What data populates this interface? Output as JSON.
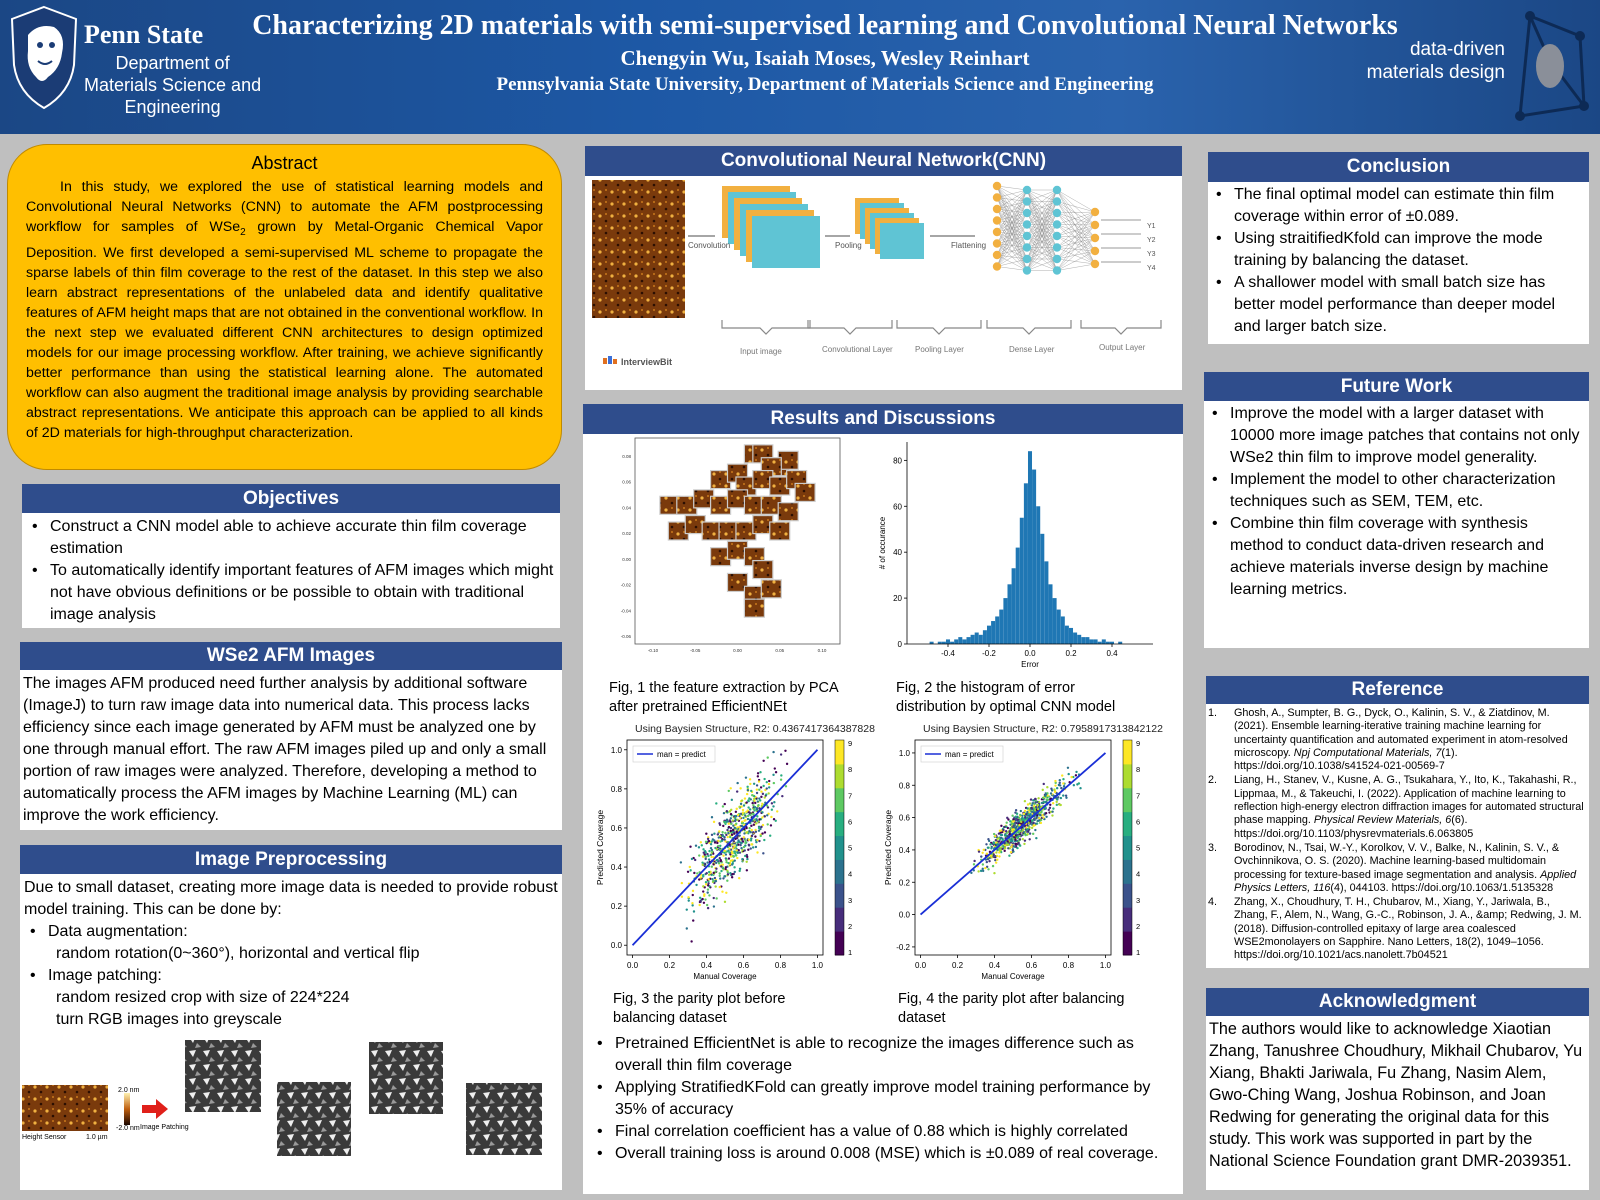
{
  "header": {
    "university": "Penn State",
    "department": [
      "Department of",
      "Materials Science and",
      "Engineering"
    ],
    "title": "Characterizing 2D materials with semi-supervised learning and Convolutional Neural Networks",
    "authors": "Chengyin Wu, Isaiah Moses, Wesley Reinhart",
    "affiliation": "Pennsylvania State University, Department of Materials Science and Engineering",
    "brand": [
      "data-driven",
      "materials design"
    ]
  },
  "abstract": {
    "heading": "Abstract",
    "text_before_sub": "In this study, we explored the use of statistical learning models and Convolutional Neural Networks (CNN) to automate the AFM postprocessing workflow for samples of WSe",
    "subscript": "2",
    "text_after_sub": " grown by Metal-Organic Chemical Vapor Deposition. We first developed a semi-supervised ML scheme to propagate the sparse labels of thin film coverage to the rest of the dataset. In this step we also learn abstract representations of the unlabeled data and identify qualitative features of AFM height maps that are not obtained in the conventional workflow. In the next step we evaluated different CNN architectures to design optimized models for our image processing workflow. After training, we achieve significantly better performance than using the statistical learning alone. The automated workflow can also augment the traditional image analysis by providing searchable abstract representations. We anticipate this approach can be applied to all kinds of 2D materials for high-throughput characterization."
  },
  "objectives": {
    "heading": "Objectives",
    "items": [
      "Construct a CNN model able to achieve accurate thin film coverage estimation",
      "To automatically identify important features of AFM images which might not have obvious definitions or be possible to obtain with traditional image analysis"
    ]
  },
  "afm": {
    "heading": "WSe2 AFM Images",
    "text": "The images AFM produced need further analysis by additional software (ImageJ) to turn raw image data into numerical data. This process lacks efficiency since each image generated by AFM must be analyzed one by one through manual effort. The raw AFM images piled up and only a small portion of raw images were analyzed. Therefore, developing a method to automatically process the AFM images by Machine Learning (ML) can improve the work efficiency."
  },
  "preprocessing": {
    "heading": "Image Preprocessing",
    "intro": "Due to small dataset, creating more image data is needed to provide robust model training. This can be done by:",
    "item1": "Data augmentation:",
    "item1_sub": "random rotation(0~360°), horizontal and vertical flip",
    "item2": "Image patching:",
    "item2_sub1": "random resized crop with size of 224*224",
    "item2_sub2": "turn RGB images into greyscale",
    "fig": {
      "scale_top": "2.0 nm",
      "scale_bottom": "-2.0 nm",
      "arrow_label": "Image Patching",
      "sensor_label": "Height Sensor",
      "scale_bar": "1.0 µm"
    }
  },
  "cnn": {
    "heading": "Convolutional Neural Network(CNN)",
    "stages": [
      "Convolution",
      "Pooling",
      "Flattening"
    ],
    "layers": [
      "Input image",
      "Convolutional Layer",
      "Pooling Layer",
      "Dense Layer",
      "Output Layer"
    ],
    "outputs": [
      "Y1",
      "Y2",
      "Y3",
      "Y4"
    ],
    "credit": "InterviewBit"
  },
  "results": {
    "heading": "Results and Discussions",
    "fig1_caption": [
      "Fig, 1 the feature extraction by PCA",
      "after pretrained EfficientNEt"
    ],
    "fig2_caption": [
      "Fig, 2 the histogram of error",
      "distribution by optimal CNN model"
    ],
    "fig3_caption": [
      "Fig, 3 the parity plot before",
      "balancing dataset"
    ],
    "fig4_caption": [
      "Fig, 4 the parity plot after balancing",
      "dataset"
    ],
    "bullets": [
      "Pretrained EfficientNet is able to recognize the images difference such as overall thin film coverage",
      "Applying StratifiedKFold can greatly improve model training performance by 35% of accuracy",
      "Final correlation coefficient has a value of 0.88 which is highly correlated",
      "Overall training loss is around 0.008 (MSE) which is ±0.089 of real coverage."
    ]
  },
  "conclusion": {
    "heading": "Conclusion",
    "items": [
      "The final optimal model can estimate thin film coverage within error of ±0.089.",
      "Using straitifiedKfold can improve the mode training by balancing the dataset.",
      "A shallower model with small batch size has better model performance than deeper model and larger batch size."
    ]
  },
  "future": {
    "heading": "Future Work",
    "items": [
      "Improve the model with a larger dataset with 10000 more image patches that contains not only WSe2 thin film to improve model generality.",
      "Implement the model to other characterization techniques such as SEM, TEM, etc.",
      "Combine thin film coverage with synthesis method to conduct data-driven research and achieve materials inverse design by machine learning metrics."
    ]
  },
  "references": {
    "heading": "Reference",
    "items": [
      {
        "n": "1.",
        "a": "Ghosh, A., Sumpter, B. G., Dyck, O., Kalinin, S. V., & Ziatdinov, M. (2021). Ensemble learning-iterative training machine learning for uncertainty quantification and automated experiment in atom-resolved microscopy. ",
        "i": "Npj Computational Materials, 7",
        "b": "(1). https://doi.org/10.1038/s41524-021-00569-7"
      },
      {
        "n": "2.",
        "a": "Liang, H., Stanev, V., Kusne, A. G., Tsukahara, Y., Ito, K., Takahashi, R., Lippmaa, M., & Takeuchi, I. (2022). Application of machine learning to reflection high-energy electron diffraction images for automated structural phase mapping. ",
        "i": "Physical Review Materials, 6",
        "b": "(6). https://doi.org/10.1103/physrevmaterials.6.063805"
      },
      {
        "n": "3.",
        "a": "Borodinov, N., Tsai, W.-Y., Korolkov, V. V., Balke, N., Kalinin, S. V., & Ovchinnikova, O. S. (2020). Machine learning-based multidomain processing for texture-based image segmentation and analysis. ",
        "i": "Applied Physics Letters, 116",
        "b": "(4), 044103. https://doi.org/10.1063/1.5135328"
      },
      {
        "n": "4.",
        "a": "Zhang, X., Choudhury, T. H., Chubarov, M., Xiang, Y., Jariwala, B., Zhang, F., Alem, N., Wang, G.-C., Robinson, J. A., &amp; Redwing, J. M. (2018). Diffusion-controlled epitaxy of large area coalesced WSE2monolayers on Sapphire. Nano Letters, 18(2), 1049–1056. https://doi.org/10.1021/acs.nanolett.7b04521",
        "i": "",
        "b": ""
      }
    ]
  },
  "acknowledgment": {
    "heading": "Acknowledgment",
    "text": "The authors would like to acknowledge Xiaotian Zhang, Tanushree Choudhury, Mikhail Chubarov, Yu Xiang, Bhakti Jariwala, Fu Zhang, Nasim Alem, Gwo-Ching Wang, Joshua Robinson, and Joan Redwing for generating the original data for this study. This work was supported in part by the National Science Foundation grant DMR-2039351."
  },
  "colors": {
    "header_blue": "#1d58a5",
    "section_blue": "#2f4d8c",
    "abstract_gold": "#ffbf00",
    "plot_blue": "#1f77b4",
    "fit_line": "#1a2fd6"
  },
  "chart_data": [
    {
      "type": "scatter",
      "chart": "Fig, 1 the feature extraction by PCA",
      "xticks": [
        "-0.10",
        "-0.05",
        "0.00",
        "0.05",
        "0.10"
      ],
      "yticks": [
        "0.08",
        "0.06",
        "0.04",
        "0.02",
        "0.00",
        "-0.02",
        "-0.04",
        "-0.06"
      ],
      "points": [
        [
          0.1,
          0.09
        ],
        [
          0.02,
          0.06
        ],
        [
          0.03,
          0.06
        ],
        [
          0.05,
          0.05
        ],
        [
          0.06,
          0.055
        ],
        [
          0.04,
          0.05
        ],
        [
          -0.02,
          0.04
        ],
        [
          0.0,
          0.045
        ],
        [
          0.01,
          0.035
        ],
        [
          0.03,
          0.04
        ],
        [
          0.05,
          0.035
        ],
        [
          0.07,
          0.04
        ],
        [
          0.08,
          0.03
        ],
        [
          -0.08,
          0.02
        ],
        [
          -0.06,
          0.02
        ],
        [
          -0.04,
          0.025
        ],
        [
          -0.02,
          0.02
        ],
        [
          0.0,
          0.025
        ],
        [
          0.02,
          0.02
        ],
        [
          0.04,
          0.02
        ],
        [
          0.06,
          0.015
        ],
        [
          -0.07,
          0.0
        ],
        [
          -0.05,
          0.005
        ],
        [
          -0.03,
          0.0
        ],
        [
          -0.01,
          0.0
        ],
        [
          0.01,
          0.0
        ],
        [
          0.03,
          0.005
        ],
        [
          0.05,
          0.0
        ],
        [
          -0.02,
          -0.02
        ],
        [
          0.0,
          -0.015
        ],
        [
          0.02,
          -0.02
        ],
        [
          0.03,
          -0.03
        ],
        [
          0.0,
          -0.04
        ],
        [
          0.02,
          -0.05
        ],
        [
          0.04,
          -0.045
        ],
        [
          0.02,
          -0.06
        ]
      ]
    },
    {
      "type": "bar",
      "chart": "Fig, 2 the histogram of error",
      "xlabel": "Error",
      "ylabel": "# of occurance",
      "xticks": [
        "-0.4",
        "-0.2",
        "0.0",
        "0.2",
        "0.4"
      ],
      "yticks": [
        "0",
        "20",
        "40",
        "60",
        "80"
      ],
      "xlim": [
        -0.6,
        0.6
      ],
      "ylim": [
        0,
        88
      ],
      "bin_centers": [
        -0.48,
        -0.46,
        -0.44,
        -0.42,
        -0.4,
        -0.38,
        -0.36,
        -0.34,
        -0.32,
        -0.3,
        -0.28,
        -0.26,
        -0.24,
        -0.22,
        -0.2,
        -0.18,
        -0.16,
        -0.14,
        -0.12,
        -0.1,
        -0.08,
        -0.06,
        -0.04,
        -0.02,
        0.0,
        0.02,
        0.04,
        0.06,
        0.08,
        0.1,
        0.12,
        0.14,
        0.16,
        0.18,
        0.2,
        0.22,
        0.24,
        0.26,
        0.28,
        0.3,
        0.32,
        0.34,
        0.36,
        0.38,
        0.4,
        0.42,
        0.44
      ],
      "counts": [
        1,
        0,
        1,
        1,
        2,
        1,
        2,
        3,
        2,
        3,
        4,
        5,
        4,
        6,
        8,
        10,
        12,
        15,
        20,
        26,
        33,
        42,
        55,
        70,
        84,
        76,
        60,
        48,
        36,
        26,
        20,
        15,
        12,
        8,
        7,
        5,
        4,
        3,
        3,
        2,
        2,
        1,
        2,
        1,
        1,
        0,
        1
      ]
    },
    {
      "type": "scatter",
      "chart": "Fig, 3 the parity plot before balancing dataset",
      "title": "Using Baysien Structure, R2: 0.4367417364387828",
      "xlabel": "Manual Coverage",
      "ylabel": "Predicted Coverage",
      "legend": "man = predict",
      "xticks": [
        "0.0",
        "0.2",
        "0.4",
        "0.6",
        "0.8",
        "1.0"
      ],
      "yticks": [
        "0.0",
        "0.2",
        "0.4",
        "0.6",
        "0.8",
        "1.0"
      ],
      "xlim": [
        -0.03,
        1.03
      ],
      "ylim": [
        -0.05,
        1.05
      ],
      "colorbar": [
        1,
        9
      ],
      "colorbar_ticks": [
        "1",
        "2",
        "3",
        "4",
        "5",
        "6",
        "7",
        "8",
        "9"
      ],
      "fit_line": [
        [
          0.0,
          0.0
        ],
        [
          1.0,
          1.0
        ]
      ]
    },
    {
      "type": "scatter",
      "chart": "Fig, 4 the parity plot after balancing dataset",
      "title": "Using Baysien Structure, R2: 0.7958917313842122",
      "xlabel": "Manual Coverage",
      "ylabel": "Predicted Coverage",
      "legend": "man = predict",
      "xticks": [
        "0.0",
        "0.2",
        "0.4",
        "0.6",
        "0.8",
        "1.0"
      ],
      "yticks": [
        "-0.2",
        "0.0",
        "0.2",
        "0.4",
        "0.6",
        "0.8",
        "1.0"
      ],
      "xlim": [
        -0.03,
        1.03
      ],
      "ylim": [
        -0.25,
        1.08
      ],
      "colorbar": [
        1,
        9
      ],
      "colorbar_ticks": [
        "1",
        "2",
        "3",
        "4",
        "5",
        "6",
        "7",
        "8",
        "9"
      ],
      "fit_line": [
        [
          0.0,
          0.0
        ],
        [
          1.0,
          1.0
        ]
      ]
    }
  ]
}
